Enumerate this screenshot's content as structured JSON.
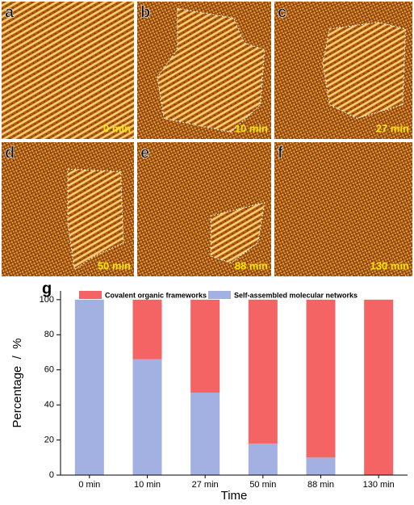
{
  "panels": [
    {
      "letter": "a",
      "time": "0 min"
    },
    {
      "letter": "b",
      "time": "10 min"
    },
    {
      "letter": "c",
      "time": "27 min"
    },
    {
      "letter": "d",
      "time": "50 min"
    },
    {
      "letter": "e",
      "time": "88 min"
    },
    {
      "letter": "f",
      "time": "130 min"
    }
  ],
  "chart_data": {
    "type": "stacked_bar",
    "panel_label": "g",
    "x_label": "Time",
    "y_label": "Percentage  /  %",
    "categories": [
      "0 min",
      "10 min",
      "27 min",
      "50 min",
      "88 min",
      "130 min"
    ],
    "series": [
      {
        "name": "Covalent organic frameworks",
        "color": "#f46464",
        "values": [
          0,
          34,
          53,
          82,
          90,
          100
        ]
      },
      {
        "name": "Self-assembled molecular networks",
        "color": "#a3b1e2",
        "values": [
          100,
          66,
          47,
          18,
          10,
          0
        ]
      }
    ],
    "ylim": [
      0,
      105
    ],
    "yticks": [
      0,
      20,
      40,
      60,
      80,
      100
    ]
  }
}
